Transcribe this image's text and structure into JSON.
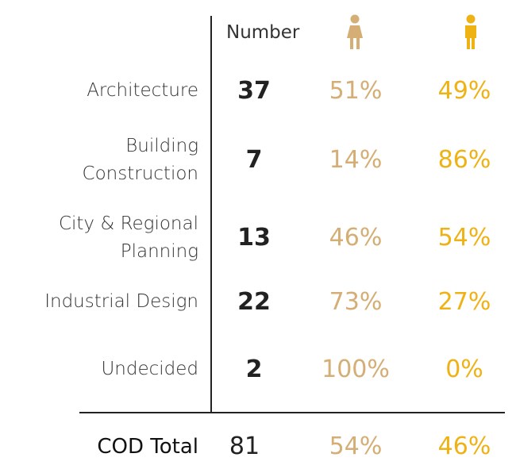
{
  "header": {
    "number": "Number"
  },
  "table": {
    "rows": [
      {
        "label": [
          "Architecture"
        ],
        "number": "37",
        "female": "51%",
        "male": "49%"
      },
      {
        "label": [
          "Building",
          "Construction"
        ],
        "number": "7",
        "female": "14%",
        "male": "86%"
      },
      {
        "label": [
          "City & Regional",
          "Planning"
        ],
        "number": "13",
        "female": "46%",
        "male": "54%"
      },
      {
        "label": [
          "Industrial Design"
        ],
        "number": "22",
        "female": "73%",
        "male": "27%"
      },
      {
        "label": [
          "Undecided"
        ],
        "number": "2",
        "female": "100%",
        "male": "0%"
      }
    ],
    "total": {
      "label": "COD Total",
      "number": "81",
      "female": "54%",
      "male": "46%"
    }
  }
}
